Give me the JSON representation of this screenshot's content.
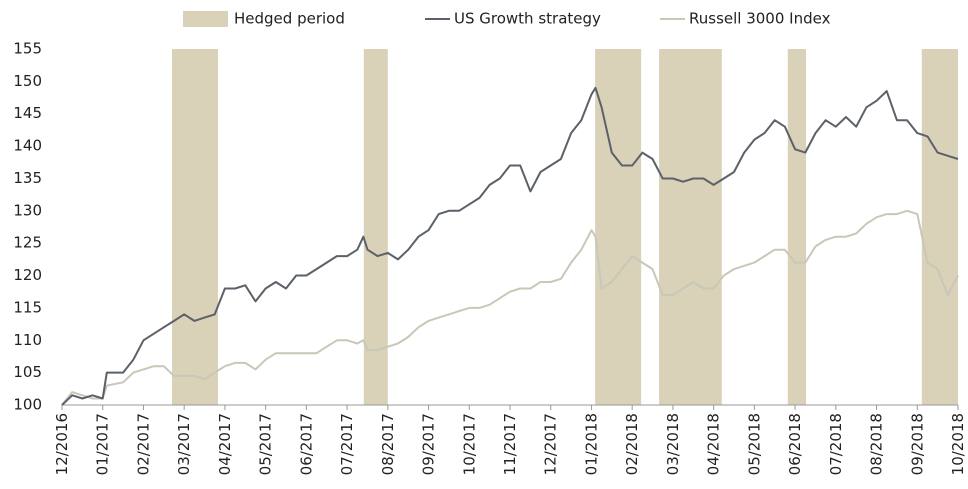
{
  "chart_data": {
    "type": "line",
    "xlim": [
      0,
      22
    ],
    "ylim": [
      100,
      155
    ],
    "yticks": [
      100,
      105,
      110,
      115,
      120,
      125,
      130,
      135,
      140,
      145,
      150,
      155
    ],
    "xticks": [
      {
        "value": 0,
        "label": "12/2016"
      },
      {
        "value": 1,
        "label": "01/2017"
      },
      {
        "value": 2,
        "label": "02/2017"
      },
      {
        "value": 3,
        "label": "03/2017"
      },
      {
        "value": 4,
        "label": "04/2017"
      },
      {
        "value": 5,
        "label": "05/2017"
      },
      {
        "value": 6,
        "label": "06/2017"
      },
      {
        "value": 7,
        "label": "07/2017"
      },
      {
        "value": 8,
        "label": "08/2017"
      },
      {
        "value": 9,
        "label": "09/2017"
      },
      {
        "value": 10,
        "label": "10/2017"
      },
      {
        "value": 11,
        "label": "11/2017"
      },
      {
        "value": 12,
        "label": "12/2017"
      },
      {
        "value": 13,
        "label": "01/2018"
      },
      {
        "value": 14,
        "label": "02/2018"
      },
      {
        "value": 15,
        "label": "03/2018"
      },
      {
        "value": 16,
        "label": "04/2018"
      },
      {
        "value": 17,
        "label": "05/2018"
      },
      {
        "value": 18,
        "label": "06/2018"
      },
      {
        "value": 19,
        "label": "07/2018"
      },
      {
        "value": 20,
        "label": "08/2018"
      },
      {
        "value": 21,
        "label": "09/2018"
      },
      {
        "value": 22,
        "label": "10/2018"
      }
    ],
    "bands": {
      "name": "Hedged period",
      "color": "#d9d2b9",
      "ranges": [
        [
          2.7,
          3.83
        ],
        [
          7.41,
          8.0
        ],
        [
          13.09,
          14.22
        ],
        [
          14.66,
          16.2
        ],
        [
          17.82,
          18.27
        ],
        [
          21.11,
          22.0
        ]
      ]
    },
    "x": [
      0,
      0.25,
      0.5,
      0.75,
      1,
      1.1,
      1.5,
      1.75,
      2,
      2.25,
      2.5,
      2.75,
      3,
      3.25,
      3.5,
      3.75,
      4,
      4.25,
      4.5,
      4.75,
      5,
      5.25,
      5.5,
      5.75,
      6,
      6.25,
      6.5,
      6.75,
      7,
      7.25,
      7.4,
      7.5,
      7.75,
      8,
      8.25,
      8.5,
      8.75,
      9,
      9.25,
      9.5,
      9.75,
      10,
      10.25,
      10.5,
      10.75,
      11,
      11.25,
      11.5,
      11.75,
      12,
      12.25,
      12.5,
      12.75,
      13,
      13.1,
      13.25,
      13.5,
      13.75,
      14,
      14.25,
      14.5,
      14.75,
      15,
      15.25,
      15.5,
      15.75,
      16,
      16.25,
      16.5,
      16.75,
      17,
      17.25,
      17.5,
      17.75,
      18,
      18.25,
      18.5,
      18.75,
      19,
      19.25,
      19.5,
      19.75,
      20,
      20.25,
      20.5,
      20.75,
      21,
      21.25,
      21.5,
      21.75,
      22
    ],
    "series": [
      {
        "name": "US Growth strategy",
        "color": "#5b6168",
        "values": [
          100,
          101.5,
          101,
          101.5,
          101,
          105,
          105,
          107,
          110,
          111,
          112,
          113,
          114,
          113,
          113.5,
          114,
          118,
          118,
          118.5,
          116,
          118,
          119,
          118,
          120,
          120,
          121,
          122,
          123,
          123,
          124,
          126,
          124,
          123,
          123.5,
          122.5,
          124,
          126,
          127,
          129.5,
          130,
          130,
          131,
          132,
          134,
          135,
          137,
          137,
          133,
          136,
          137,
          138,
          142,
          144,
          148,
          149,
          146,
          139,
          137,
          137,
          139,
          138,
          135,
          135,
          134.5,
          135,
          135,
          134,
          135,
          136,
          139,
          141,
          142,
          144,
          143,
          139.5,
          139,
          142,
          144,
          143,
          144.5,
          143,
          146,
          147,
          148.5,
          144,
          144,
          142,
          141.5,
          139,
          138.5,
          138
        ]
      },
      {
        "name": "Russell 3000 Index",
        "color": "#c9c7b8",
        "values": [
          100,
          102,
          101.5,
          101,
          101,
          103,
          103.5,
          105,
          105.5,
          106,
          106,
          104.5,
          104.5,
          104.5,
          104,
          105,
          106,
          106.5,
          106.5,
          105.5,
          107,
          108,
          108,
          108,
          108,
          108,
          109,
          110,
          110,
          109.5,
          110,
          108.5,
          108.5,
          109,
          109.5,
          110.5,
          112,
          113,
          113.5,
          114,
          114.5,
          115,
          115,
          115.5,
          116.5,
          117.5,
          118,
          118,
          119,
          119,
          119.5,
          122,
          124,
          127,
          126,
          118,
          119,
          121,
          123,
          122,
          121,
          117,
          117,
          118,
          119,
          118,
          118,
          120,
          121,
          121.5,
          122,
          123,
          124,
          124,
          122,
          122,
          124.5,
          125.5,
          126,
          126,
          126.5,
          128,
          129,
          129.5,
          129.5,
          130,
          129.5,
          122,
          121,
          117,
          120
        ]
      }
    ]
  }
}
